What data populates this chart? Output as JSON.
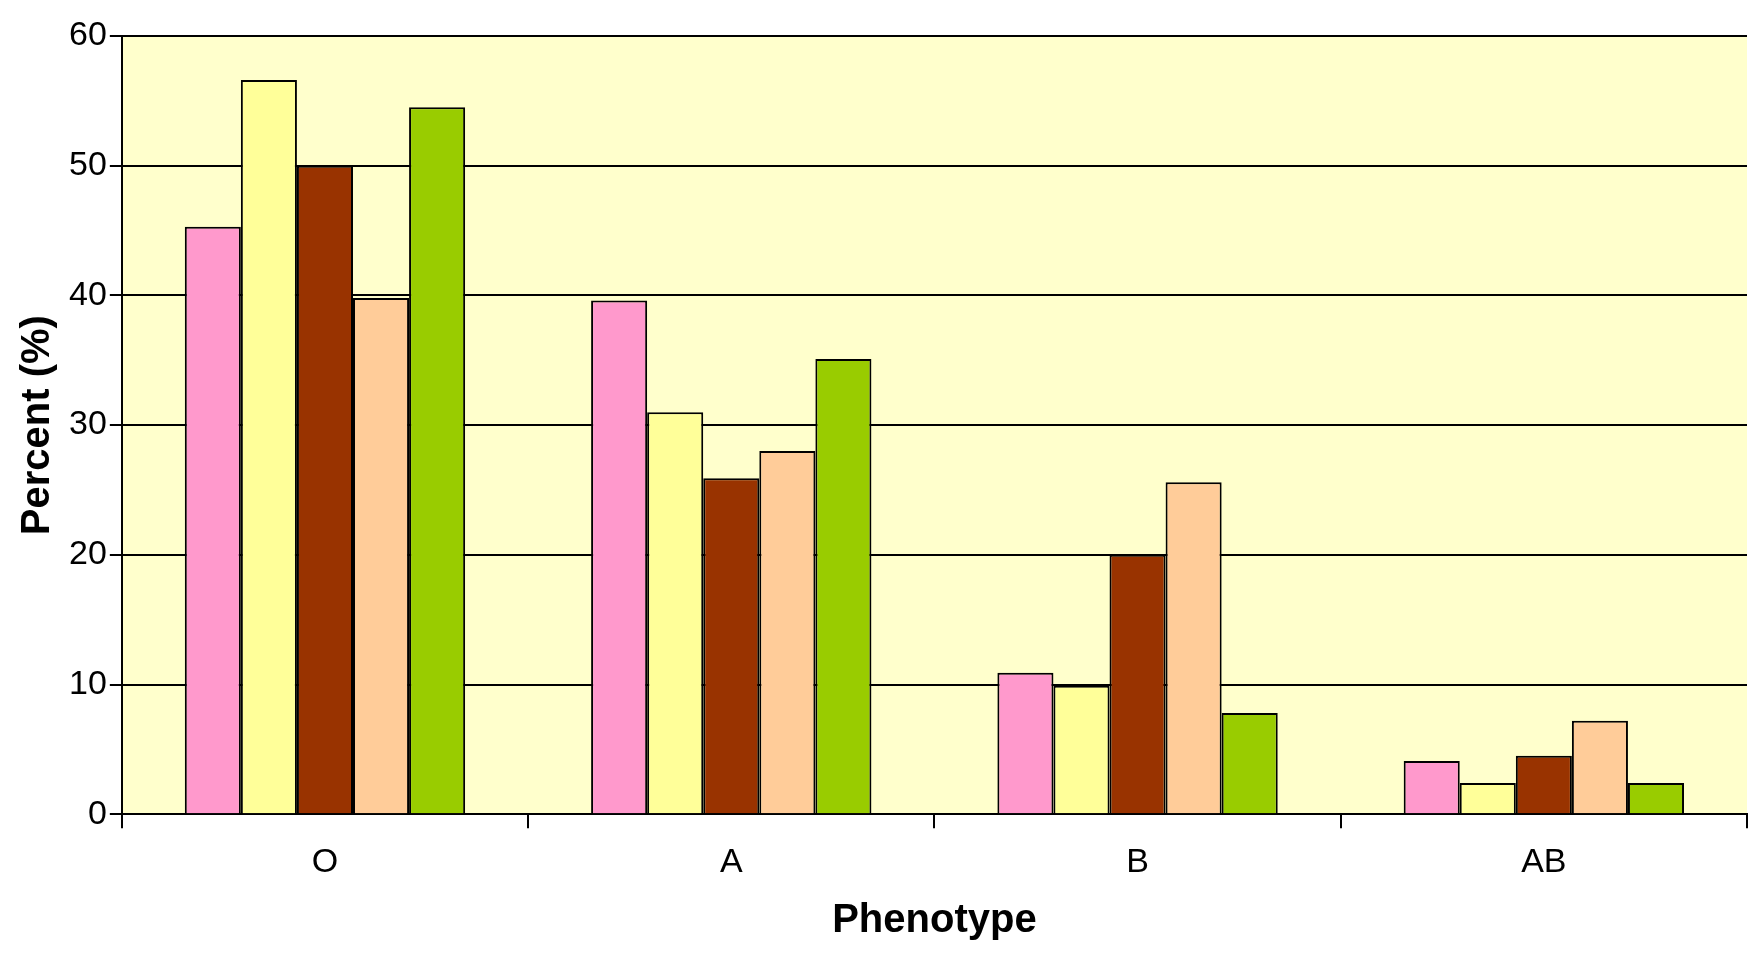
{
  "chart_data": {
    "type": "bar",
    "xlabel": "Phenotype",
    "ylabel": "Percent (%)",
    "categories": [
      "O",
      "A",
      "B",
      "AB"
    ],
    "series": [
      {
        "color": "#ff99cc",
        "values": [
          45.3,
          39.6,
          10.9,
          4.1
        ]
      },
      {
        "color": "#ffff99",
        "values": [
          56.6,
          31,
          9.9,
          2.4
        ]
      },
      {
        "color": "#993300",
        "values": [
          50,
          25.9,
          20,
          4.5
        ]
      },
      {
        "color": "#ffcc99",
        "values": [
          39.8,
          28,
          25.6,
          7.2
        ]
      },
      {
        "color": "#99cc00",
        "values": [
          54.5,
          35.1,
          7.8,
          2.4
        ]
      }
    ],
    "ylim": [
      0,
      60
    ],
    "yticks": [
      0,
      10,
      20,
      30,
      40,
      50,
      60
    ],
    "grid": "y",
    "legend": false
  }
}
